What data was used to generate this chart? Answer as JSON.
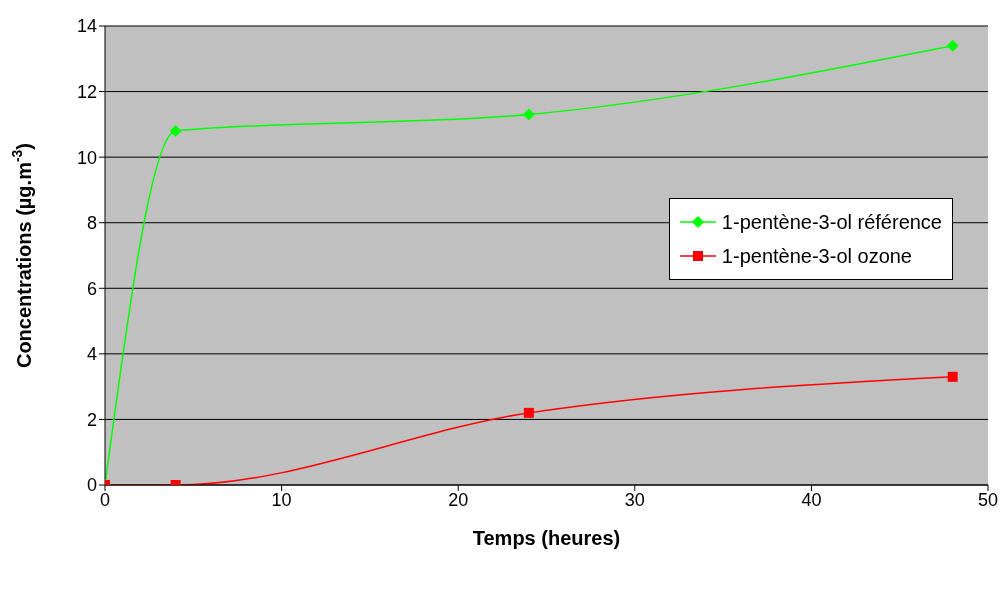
{
  "chart_data": {
    "type": "line",
    "xlabel": "Temps (heures)",
    "ylabel": "Concentrations (µg.m$^{-3}$)",
    "x": [
      0,
      4,
      24,
      48
    ],
    "series": [
      {
        "name": "1-pentène-3-ol référence",
        "color": "#00ff00",
        "marker": "diamond",
        "values": [
          0,
          10.8,
          11.3,
          13.4
        ]
      },
      {
        "name": "1-pentène-3-ol ozone",
        "color": "#ff0000",
        "marker": "square",
        "values": [
          0,
          0,
          2.2,
          3.3
        ]
      }
    ],
    "xlim": [
      0,
      50
    ],
    "xticks": [
      0,
      10,
      20,
      30,
      40,
      50
    ],
    "ylim": [
      0,
      14
    ],
    "yticks": [
      0,
      2,
      4,
      6,
      8,
      10,
      12,
      14
    ],
    "grid": "y",
    "legend": "right",
    "line_style": "solid"
  }
}
